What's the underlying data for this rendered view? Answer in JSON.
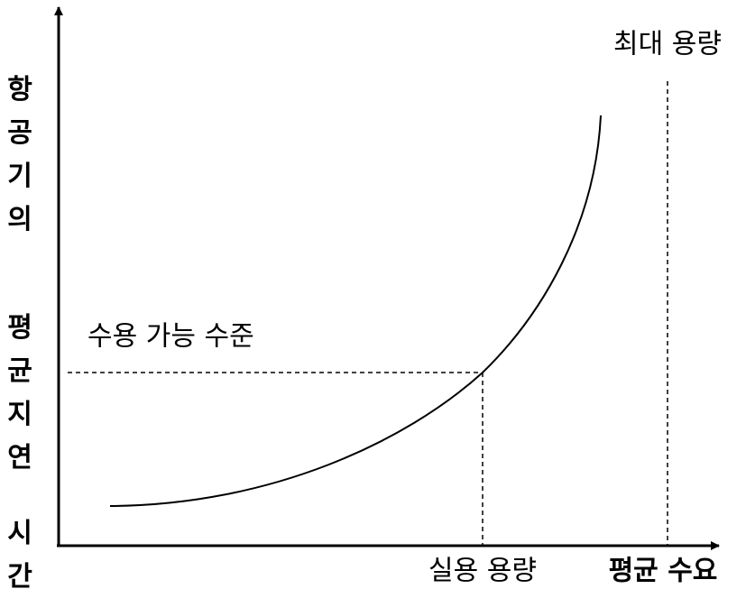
{
  "y_axis_label": "항공기의 평균지연 시간",
  "x_axis_label": "평균 수요",
  "max_capacity_label": "최대 용량",
  "acceptable_level_label": "수용 가능 수준",
  "practical_capacity_label": "실용 용량"
}
